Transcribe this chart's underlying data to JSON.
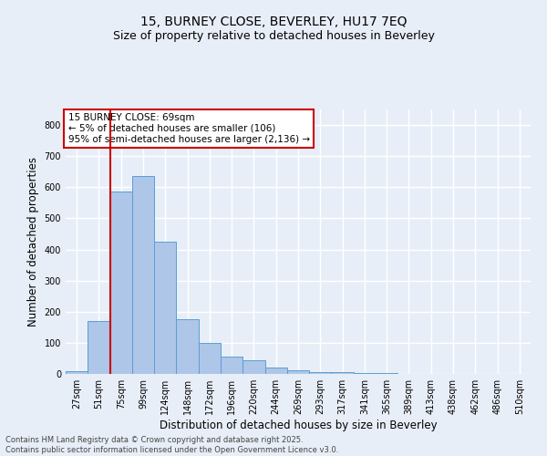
{
  "title_line1": "15, BURNEY CLOSE, BEVERLEY, HU17 7EQ",
  "title_line2": "Size of property relative to detached houses in Beverley",
  "xlabel": "Distribution of detached houses by size in Beverley",
  "ylabel": "Number of detached properties",
  "annotation_line1": "15 BURNEY CLOSE: 69sqm",
  "annotation_line2": "← 5% of detached houses are smaller (106)",
  "annotation_line3": "95% of semi-detached houses are larger (2,136) →",
  "footer_line1": "Contains HM Land Registry data © Crown copyright and database right 2025.",
  "footer_line2": "Contains public sector information licensed under the Open Government Licence v3.0.",
  "bar_color": "#aec6e8",
  "bar_edge_color": "#5a9fd4",
  "background_color": "#e8eef8",
  "grid_color": "#ffffff",
  "annotation_box_color": "#ffffff",
  "annotation_box_edge": "#cc0000",
  "vline_color": "#cc0000",
  "categories": [
    "27sqm",
    "51sqm",
    "75sqm",
    "99sqm",
    "124sqm",
    "148sqm",
    "172sqm",
    "196sqm",
    "220sqm",
    "244sqm",
    "269sqm",
    "293sqm",
    "317sqm",
    "341sqm",
    "365sqm",
    "389sqm",
    "413sqm",
    "438sqm",
    "462sqm",
    "486sqm",
    "510sqm"
  ],
  "values": [
    10,
    170,
    585,
    635,
    425,
    175,
    100,
    55,
    45,
    20,
    12,
    7,
    5,
    3,
    2,
    1,
    1,
    0,
    0,
    0,
    1
  ],
  "ylim": [
    0,
    850
  ],
  "yticks": [
    0,
    100,
    200,
    300,
    400,
    500,
    600,
    700,
    800
  ],
  "vline_x": 1.5,
  "property_size_sqm": 69,
  "title_fontsize": 10,
  "subtitle_fontsize": 9,
  "xlabel_fontsize": 8.5,
  "ylabel_fontsize": 8.5,
  "tick_fontsize": 7,
  "annotation_fontsize": 7.5,
  "footer_fontsize": 6
}
